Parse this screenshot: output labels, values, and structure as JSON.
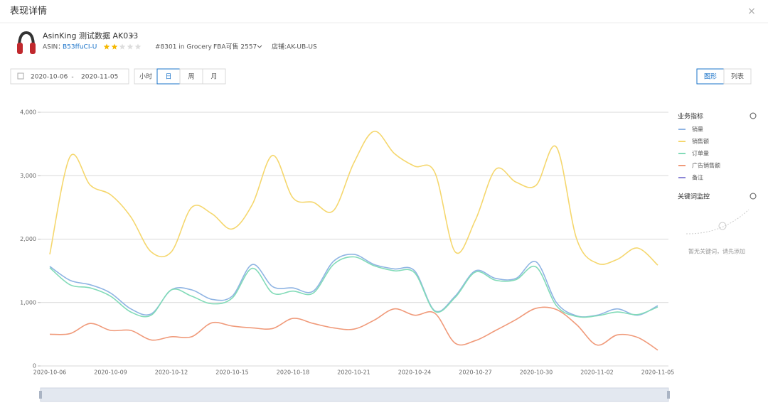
{
  "header": {
    "title": "表现详情",
    "close": "×"
  },
  "product": {
    "name": "AsinKing 测试数据 AK033",
    "asin_label": "ASIN：",
    "asin": "B53ffuCI-U",
    "rating": 2,
    "rating_max": 5,
    "rank": "#8301 in Grocery",
    "fba": "FBA可售 2557",
    "store": "店铺:AK-UB-US"
  },
  "controls": {
    "date_start": "2020-10-06",
    "date_sep": "-",
    "date_end": "2020-11-05",
    "granularity": [
      "小时",
      "日",
      "周",
      "月"
    ],
    "granularity_active": 1,
    "views": [
      "图形",
      "列表"
    ],
    "view_active": 0
  },
  "side_panel": {
    "metrics_title": "业务指标",
    "keywords_title": "关键词监控",
    "keywords_empty": "暂无关键词，请先添加"
  },
  "chart_data": {
    "type": "line",
    "categories": [
      "2020-10-06",
      null,
      null,
      "2020-10-09",
      null,
      null,
      "2020-10-12",
      null,
      null,
      "2020-10-15",
      null,
      null,
      "2020-10-18",
      null,
      null,
      "2020-10-21",
      null,
      null,
      "2020-10-24",
      null,
      null,
      "2020-10-27",
      null,
      null,
      "2020-10-30",
      null,
      null,
      "2020-11-02",
      null,
      null,
      "2020-11-05"
    ],
    "ylim": [
      0,
      4000
    ],
    "yticks": [
      0,
      {
        "value": 1000,
        "label": "1,000"
      },
      {
        "value": 2000,
        "label": "2,000"
      },
      {
        "value": 3000,
        "label": "3,000"
      },
      {
        "value": 4000,
        "label": "4,000"
      }
    ],
    "grid": true,
    "series": [
      {
        "name": "销量",
        "color": "#8fb4e3",
        "values": [
          1570,
          1350,
          1280,
          1150,
          900,
          820,
          1200,
          1200,
          1050,
          1100,
          1600,
          1250,
          1230,
          1180,
          1650,
          1760,
          1600,
          1530,
          1500,
          870,
          1100,
          1500,
          1380,
          1380,
          1640,
          1000,
          790,
          800,
          900,
          800,
          950
        ]
      },
      {
        "name": "销售额",
        "color": "#f5d76e",
        "values": [
          1760,
          3300,
          2850,
          2700,
          2350,
          1800,
          1800,
          2500,
          2400,
          2160,
          2550,
          3320,
          2650,
          2580,
          2450,
          3200,
          3700,
          3350,
          3150,
          3050,
          1800,
          2300,
          3100,
          2900,
          2850,
          3450,
          2000,
          1620,
          1680,
          1860,
          1590
        ]
      },
      {
        "name": "订单量",
        "color": "#82dbb8",
        "values": [
          1550,
          1280,
          1230,
          1100,
          850,
          800,
          1200,
          1100,
          980,
          1070,
          1540,
          1150,
          1180,
          1150,
          1600,
          1720,
          1580,
          1500,
          1470,
          860,
          1080,
          1480,
          1350,
          1360,
          1560,
          950,
          780,
          790,
          850,
          810,
          930
        ]
      },
      {
        "name": "广告销售额",
        "color": "#f09a7a",
        "values": [
          500,
          510,
          670,
          560,
          560,
          410,
          460,
          460,
          680,
          630,
          600,
          590,
          750,
          670,
          600,
          580,
          720,
          900,
          800,
          830,
          360,
          400,
          560,
          730,
          910,
          890,
          650,
          330,
          490,
          450,
          250
        ]
      },
      {
        "name": "备注",
        "color": "#8d87d6",
        "values": [
          null,
          null,
          null,
          null,
          null,
          null,
          null,
          null,
          null,
          null,
          null,
          null,
          null,
          null,
          null,
          null,
          null,
          null,
          null,
          null,
          null,
          null,
          null,
          null,
          null,
          null,
          null,
          null,
          null,
          null,
          null
        ]
      }
    ]
  }
}
